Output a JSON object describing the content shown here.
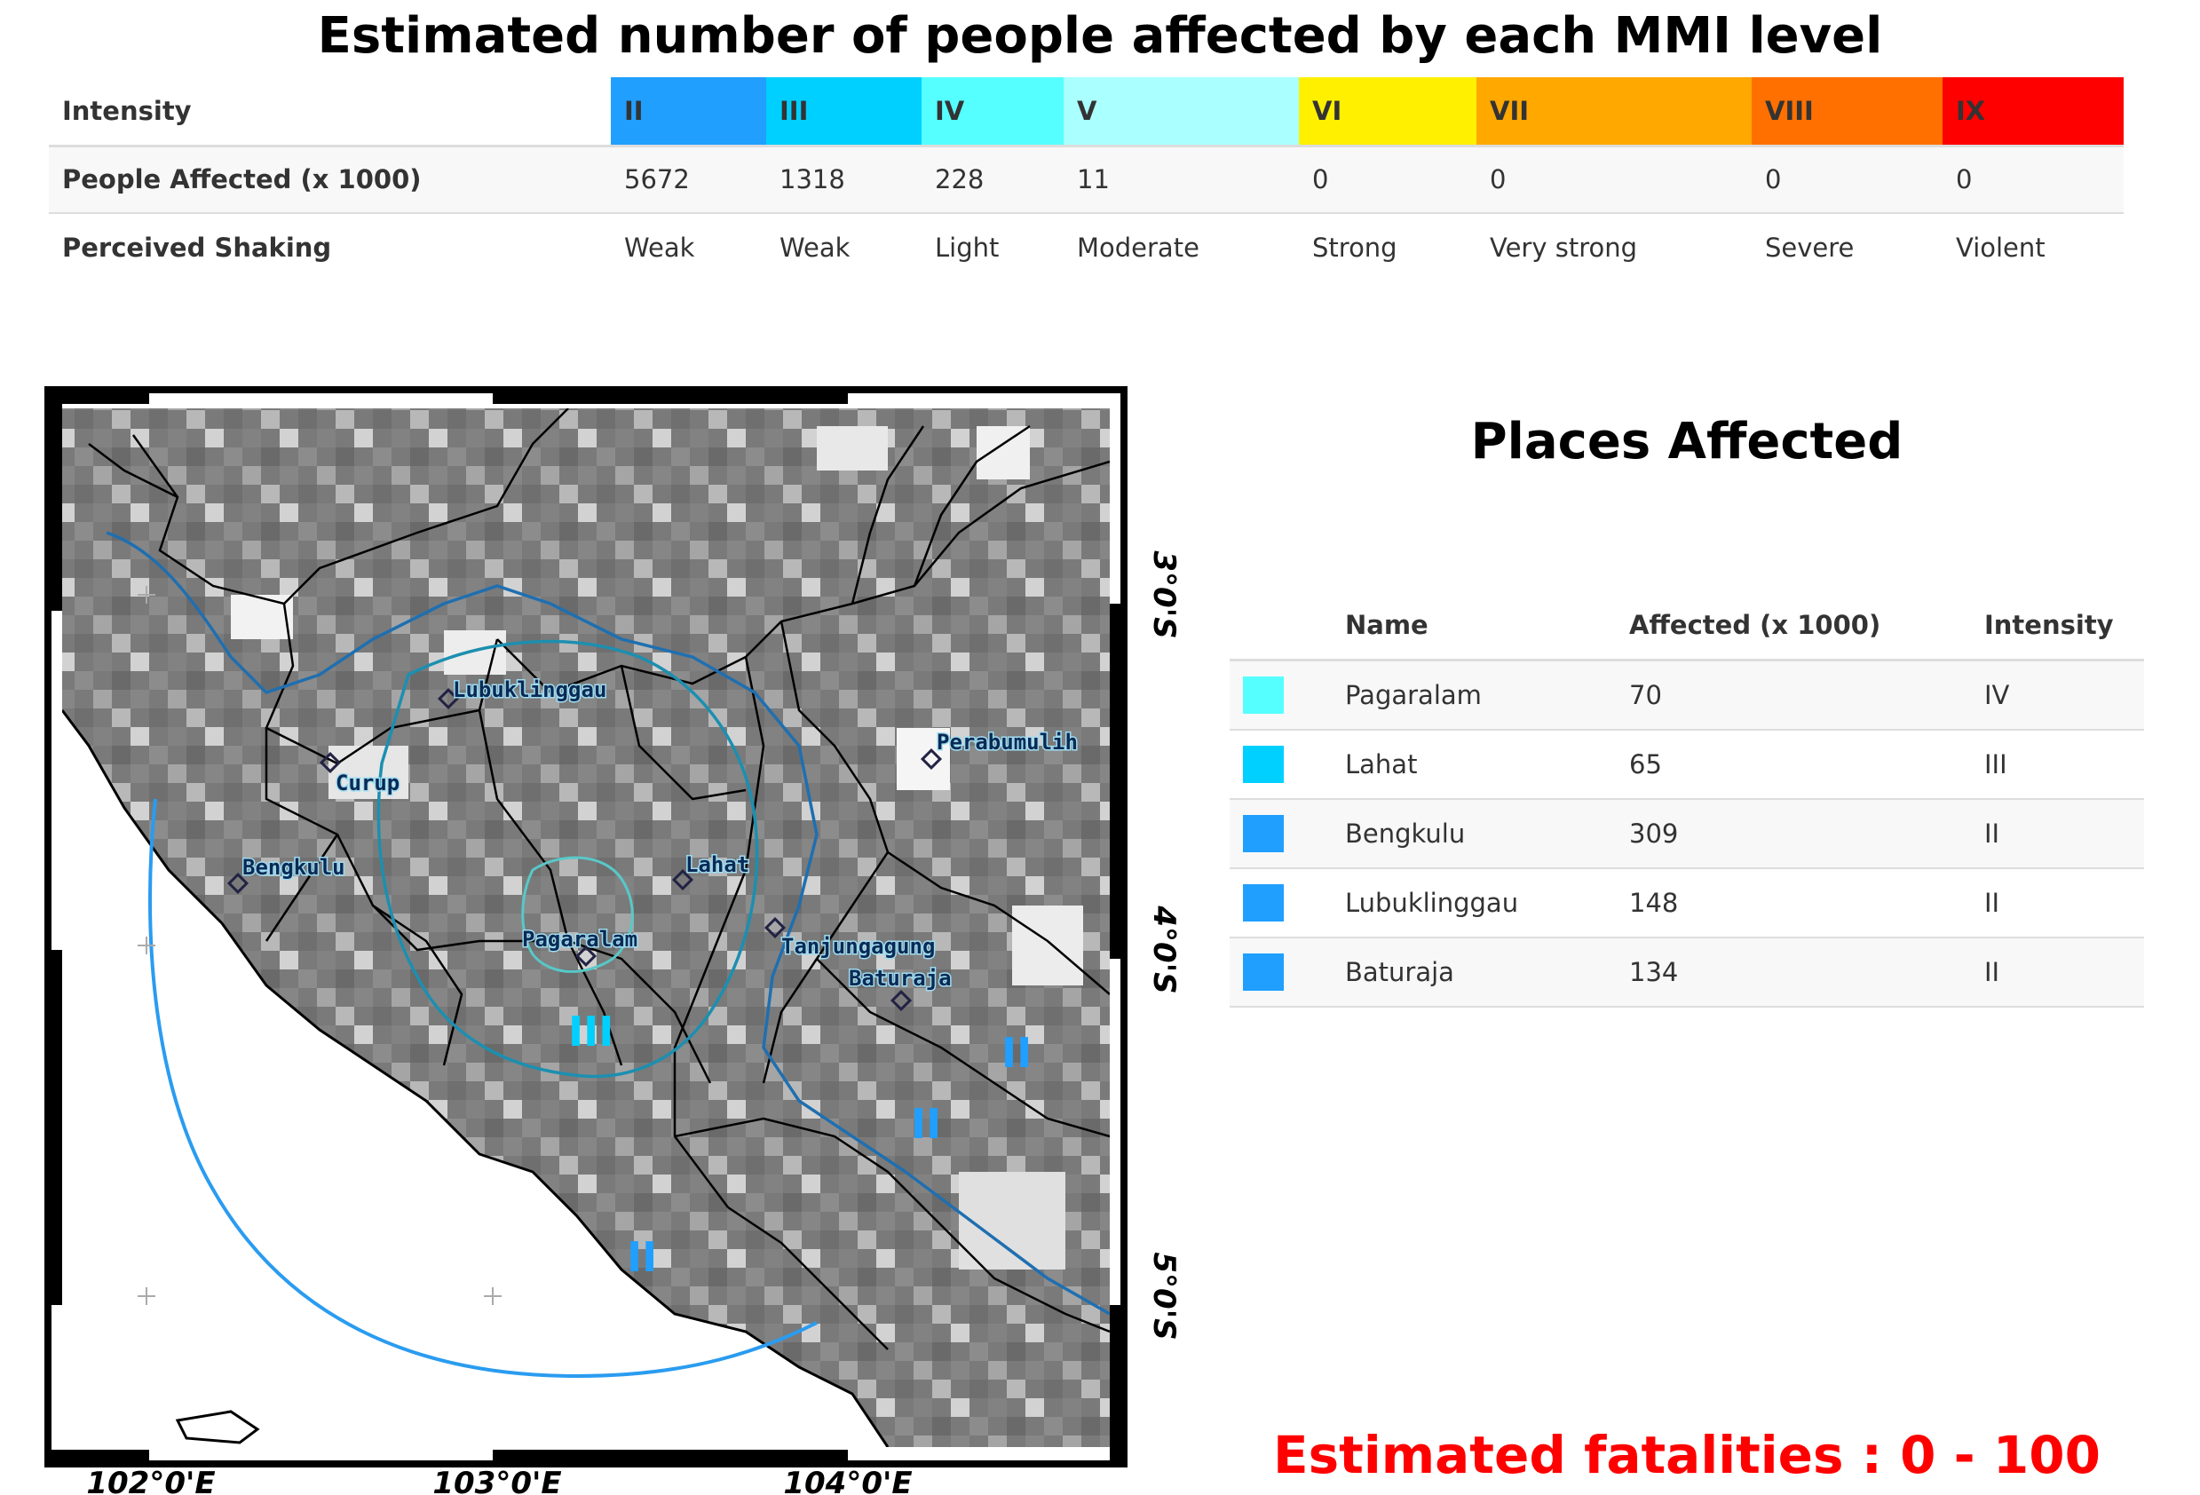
{
  "title": "Estimated number of people affected by each MMI level",
  "mmi_table": {
    "row_labels": [
      "Intensity",
      "People Affected (x 1000)",
      "Perceived Shaking"
    ],
    "columns": [
      {
        "intensity": "II",
        "affected": "5672",
        "shaking": "Weak",
        "color": "#209fff"
      },
      {
        "intensity": "III",
        "affected": "1318",
        "shaking": "Weak",
        "color": "#00d0ff"
      },
      {
        "intensity": "IV",
        "affected": "228",
        "shaking": "Light",
        "color": "#55ffff"
      },
      {
        "intensity": "V",
        "affected": "11",
        "shaking": "Moderate",
        "color": "#aaffff"
      },
      {
        "intensity": "VI",
        "affected": "0",
        "shaking": "Strong",
        "color": "#fff000"
      },
      {
        "intensity": "VII",
        "affected": "0",
        "shaking": "Very strong",
        "color": "#ffa800"
      },
      {
        "intensity": "VIII",
        "affected": "0",
        "shaking": "Severe",
        "color": "#ff7000"
      },
      {
        "intensity": "IX",
        "affected": "0",
        "shaking": "Violent",
        "color": "#ff0000"
      }
    ]
  },
  "map": {
    "lon_labels": [
      "102°0'E",
      "103°0'E",
      "104°0'E"
    ],
    "lat_labels": [
      "3°0'S",
      "4°0'S",
      "5°0'S"
    ],
    "cities": [
      {
        "name": "Lubuklinggau"
      },
      {
        "name": "Curup"
      },
      {
        "name": "Bengkulu"
      },
      {
        "name": "Lahat"
      },
      {
        "name": "Pagaralam"
      },
      {
        "name": "Tanjungagung"
      },
      {
        "name": "Baturaja"
      },
      {
        "name": "Perabumulih"
      }
    ],
    "mmi_contour_labels": [
      {
        "text": "III",
        "color": "#00d0ff"
      },
      {
        "text": "II",
        "color": "#209fff"
      },
      {
        "text": "II",
        "color": "#209fff"
      },
      {
        "text": "II",
        "color": "#209fff"
      }
    ]
  },
  "places": {
    "title": "Places Affected",
    "headers": [
      "Name",
      "Affected (x 1000)",
      "Intensity"
    ],
    "rows": [
      {
        "name": "Pagaralam",
        "affected": "70",
        "intensity": "IV",
        "color": "#55ffff"
      },
      {
        "name": "Lahat",
        "affected": "65",
        "intensity": "III",
        "color": "#00d0ff"
      },
      {
        "name": "Bengkulu",
        "affected": "309",
        "intensity": "II",
        "color": "#209fff"
      },
      {
        "name": "Lubuklinggau",
        "affected": "148",
        "intensity": "II",
        "color": "#209fff"
      },
      {
        "name": "Baturaja",
        "affected": "134",
        "intensity": "II",
        "color": "#209fff"
      }
    ]
  },
  "fatalities": "Estimated fatalities : 0 - 100"
}
